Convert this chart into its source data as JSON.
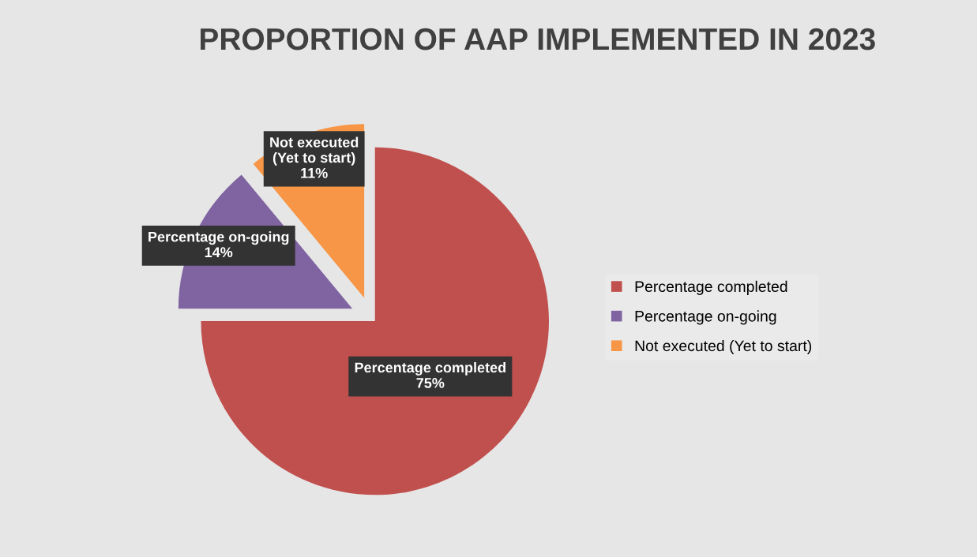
{
  "chart_data": {
    "type": "pie",
    "title": "PROPORTION OF AAP IMPLEMENTED IN 2023",
    "categories": [
      "Percentage completed",
      "Percentage on-going",
      "Not executed (Yet to start)"
    ],
    "values": [
      75,
      14,
      11
    ],
    "value_labels": [
      "75%",
      "14%",
      "11%"
    ],
    "colors": [
      "#c0504d",
      "#8064a2",
      "#f79646"
    ],
    "legend": "right"
  }
}
